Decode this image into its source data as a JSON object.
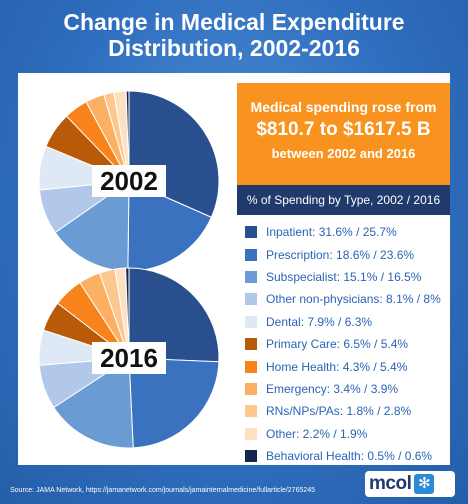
{
  "title": "Change in Medical Expenditure Distribution, 2002-2016",
  "headline": {
    "line1": "Medical spending rose from",
    "line2": "$810.7 to $1617.5 B",
    "line3": "between 2002 and 2016"
  },
  "legend_header": "% of Spending by Type, 2002 / 2016",
  "source": "Source:  JAMA Network, https://jamanetwork.com/journals/jamainternalmedicine/fullarticle/2765245",
  "logo": {
    "text": "mcol",
    "mark": "✻"
  },
  "chart_data": [
    {
      "type": "pie",
      "label": "2002",
      "categories": [
        "Inpatient",
        "Prescription",
        "Subspecialist",
        "Other non-physicians",
        "Dental",
        "Primary Care",
        "Home Health",
        "Emergency",
        "RNs/NPs/PAs",
        "Other",
        "Behavioral Health"
      ],
      "values": [
        31.6,
        18.6,
        15.1,
        8.1,
        7.9,
        6.5,
        4.3,
        3.4,
        1.8,
        2.2,
        0.5
      ],
      "colors": [
        "#2a4f8f",
        "#3a72c0",
        "#6a9bd2",
        "#b2c8e8",
        "#dfe9f6",
        "#b85a07",
        "#f7831a",
        "#fbb064",
        "#fdc88f",
        "#fde1c2",
        "#14264d"
      ]
    },
    {
      "type": "pie",
      "label": "2016",
      "categories": [
        "Inpatient",
        "Prescription",
        "Subspecialist",
        "Other non-physicians",
        "Dental",
        "Primary Care",
        "Home Health",
        "Emergency",
        "RNs/NPs/PAs",
        "Other",
        "Behavioral Health"
      ],
      "values": [
        25.7,
        23.6,
        16.5,
        8.0,
        6.3,
        5.4,
        5.4,
        3.9,
        2.8,
        1.9,
        0.6
      ],
      "colors": [
        "#2a4f8f",
        "#3a72c0",
        "#6a9bd2",
        "#b2c8e8",
        "#dfe9f6",
        "#b85a07",
        "#f7831a",
        "#fbb064",
        "#fdc88f",
        "#fde1c2",
        "#14264d"
      ]
    }
  ],
  "legend": [
    {
      "text": "Inpatient: 31.6% / 25.7%",
      "color": "#2a4f8f"
    },
    {
      "text": "Prescription: 18.6% / 23.6%",
      "color": "#3a72c0"
    },
    {
      "text": "Subspecialist: 15.1% / 16.5%",
      "color": "#6a9bd2"
    },
    {
      "text": "Other non-physicians: 8.1% / 8%",
      "color": "#b2c8e8"
    },
    {
      "text": "Dental: 7.9% / 6.3%",
      "color": "#dfe9f6"
    },
    {
      "text": "Primary Care: 6.5% / 5.4%",
      "color": "#b85a07"
    },
    {
      "text": "Home Health: 4.3% / 5.4%",
      "color": "#f7831a"
    },
    {
      "text": "Emergency: 3.4% / 3.9%",
      "color": "#fbb064"
    },
    {
      "text": "RNs/NPs/PAs: 1.8% / 2.8%",
      "color": "#fdc88f"
    },
    {
      "text": "Other: 2.2% / 1.9%",
      "color": "#fde1c2"
    },
    {
      "text": "Behavioral Health: 0.5% / 0.6%",
      "color": "#14264d"
    }
  ]
}
